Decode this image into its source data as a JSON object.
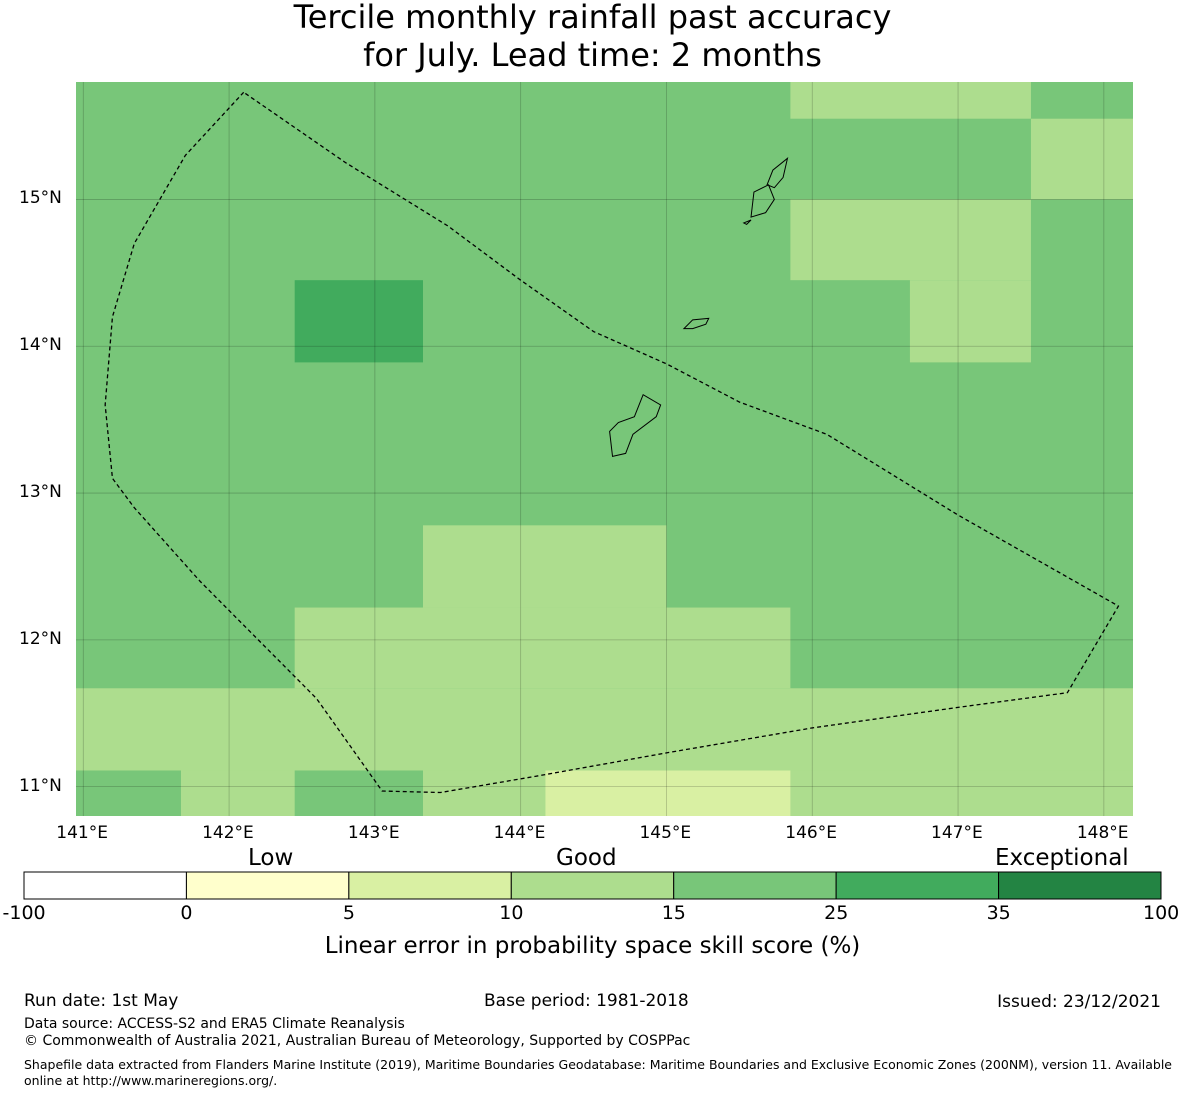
{
  "title": {
    "line1": "Tercile monthly rainfall past accuracy",
    "line2": "for July. Lead time: 2 months"
  },
  "map": {
    "x_ticks": [
      "141°E",
      "142°E",
      "143°E",
      "144°E",
      "145°E",
      "146°E",
      "147°E",
      "148°E"
    ],
    "y_ticks": [
      "15°N",
      "14°N",
      "13°N",
      "12°N",
      "11°N"
    ],
    "lon_range": [
      140.95,
      148.2
    ],
    "lat_range": [
      10.8,
      15.8
    ],
    "grid": true,
    "region_outline": [
      [
        142.1,
        15.73
      ],
      [
        141.7,
        15.3
      ],
      [
        141.35,
        14.7
      ],
      [
        141.2,
        14.2
      ],
      [
        141.15,
        13.6
      ],
      [
        141.2,
        13.1
      ],
      [
        141.35,
        12.9
      ],
      [
        141.8,
        12.4
      ],
      [
        142.6,
        11.6
      ],
      [
        143.05,
        10.97
      ],
      [
        143.45,
        10.96
      ],
      [
        144.1,
        11.07
      ],
      [
        145.0,
        11.23
      ],
      [
        146.0,
        11.4
      ],
      [
        147.0,
        11.54
      ],
      [
        147.6,
        11.62
      ],
      [
        147.75,
        11.64
      ],
      [
        148.1,
        12.23
      ],
      [
        147.0,
        12.85
      ],
      [
        146.1,
        13.4
      ],
      [
        145.5,
        13.62
      ],
      [
        145.0,
        13.88
      ],
      [
        144.5,
        14.1
      ],
      [
        144.0,
        14.45
      ],
      [
        143.5,
        14.82
      ],
      [
        142.8,
        15.25
      ]
    ],
    "islands": [
      [
        [
          144.63,
          13.25
        ],
        [
          144.61,
          13.42
        ],
        [
          144.67,
          13.48
        ],
        [
          144.78,
          13.52
        ],
        [
          144.84,
          13.67
        ],
        [
          144.96,
          13.6
        ],
        [
          144.93,
          13.52
        ],
        [
          144.77,
          13.4
        ],
        [
          144.72,
          13.27
        ]
      ],
      [
        [
          145.12,
          14.12
        ],
        [
          145.18,
          14.18
        ],
        [
          145.29,
          14.19
        ],
        [
          145.27,
          14.15
        ],
        [
          145.18,
          14.12
        ]
      ],
      [
        [
          145.58,
          14.88
        ],
        [
          145.6,
          15.05
        ],
        [
          145.7,
          15.1
        ],
        [
          145.74,
          15.0
        ],
        [
          145.68,
          14.91
        ]
      ],
      [
        [
          145.69,
          15.1
        ],
        [
          145.73,
          15.2
        ],
        [
          145.83,
          15.28
        ],
        [
          145.8,
          15.15
        ],
        [
          145.74,
          15.08
        ]
      ],
      [
        [
          145.53,
          14.84
        ],
        [
          145.58,
          14.86
        ],
        [
          145.55,
          14.83
        ]
      ]
    ],
    "cells": [
      {
        "lon": [
          140.95,
          148.2
        ],
        "lat": [
          10.8,
          15.8
        ],
        "bin": "15-25"
      },
      {
        "lon": [
          145.85,
          147.5
        ],
        "lat": [
          15.55,
          15.8
        ],
        "bin": "10-15"
      },
      {
        "lon": [
          147.5,
          148.2
        ],
        "lat": [
          15.0,
          15.55
        ],
        "bin": "10-15"
      },
      {
        "lon": [
          145.85,
          147.5
        ],
        "lat": [
          14.45,
          15.0
        ],
        "bin": "10-15"
      },
      {
        "lon": [
          146.67,
          147.5
        ],
        "lat": [
          13.89,
          14.45
        ],
        "bin": "10-15"
      },
      {
        "lon": [
          142.45,
          143.33
        ],
        "lat": [
          13.89,
          14.45
        ],
        "bin": "25-35"
      },
      {
        "lon": [
          143.33,
          145.0
        ],
        "lat": [
          12.22,
          12.78
        ],
        "bin": "10-15"
      },
      {
        "lon": [
          142.45,
          145.85
        ],
        "lat": [
          11.67,
          12.22
        ],
        "bin": "10-15"
      },
      {
        "lon": [
          140.95,
          148.2
        ],
        "lat": [
          11.11,
          11.67
        ],
        "bin": "10-15"
      },
      {
        "lon": [
          140.95,
          148.2
        ],
        "lat": [
          10.8,
          11.11
        ],
        "bin": "10-15"
      },
      {
        "lon": [
          140.95,
          141.67
        ],
        "lat": [
          10.8,
          11.11
        ],
        "bin": "15-25"
      },
      {
        "lon": [
          142.45,
          143.33
        ],
        "lat": [
          10.8,
          11.11
        ],
        "bin": "15-25"
      },
      {
        "lon": [
          144.17,
          145.85
        ],
        "lat": [
          10.8,
          11.11
        ],
        "bin": "5-10"
      }
    ]
  },
  "colorbar": {
    "category_labels": {
      "low": "Low",
      "good": "Good",
      "exceptional": "Exceptional"
    },
    "boundaries": [
      "-100",
      "0",
      "5",
      "10",
      "15",
      "25",
      "35",
      "100"
    ],
    "bins": [
      {
        "range": "-100-0",
        "color": "#ffffff"
      },
      {
        "range": "0-5",
        "color": "#ffffcc"
      },
      {
        "range": "5-10",
        "color": "#d9f0a3"
      },
      {
        "range": "10-15",
        "color": "#addd8e"
      },
      {
        "range": "15-25",
        "color": "#78c679"
      },
      {
        "range": "25-35",
        "color": "#41ab5d"
      },
      {
        "range": "35-100",
        "color": "#238443"
      }
    ],
    "title": "Linear error in probability space skill score (%)"
  },
  "footer": {
    "run_date": "Run date: 1st May",
    "base_period": "Base period: 1981-2018",
    "issued": "Issued: 23/12/2021",
    "data_source": "Data source: ACCESS-S2 and ERA5 Climate Reanalysis",
    "copyright": "© Commonwealth of Australia 2021, Australian Bureau of Meteorology, Supported by COSPPac",
    "shapefile": "Shapefile data extracted from Flanders Marine Institute (2019), Maritime Boundaries Geodatabase: Maritime Boundaries and Exclusive Economic Zones (200NM), version 11. Available online at http://www.marineregions.org/."
  }
}
